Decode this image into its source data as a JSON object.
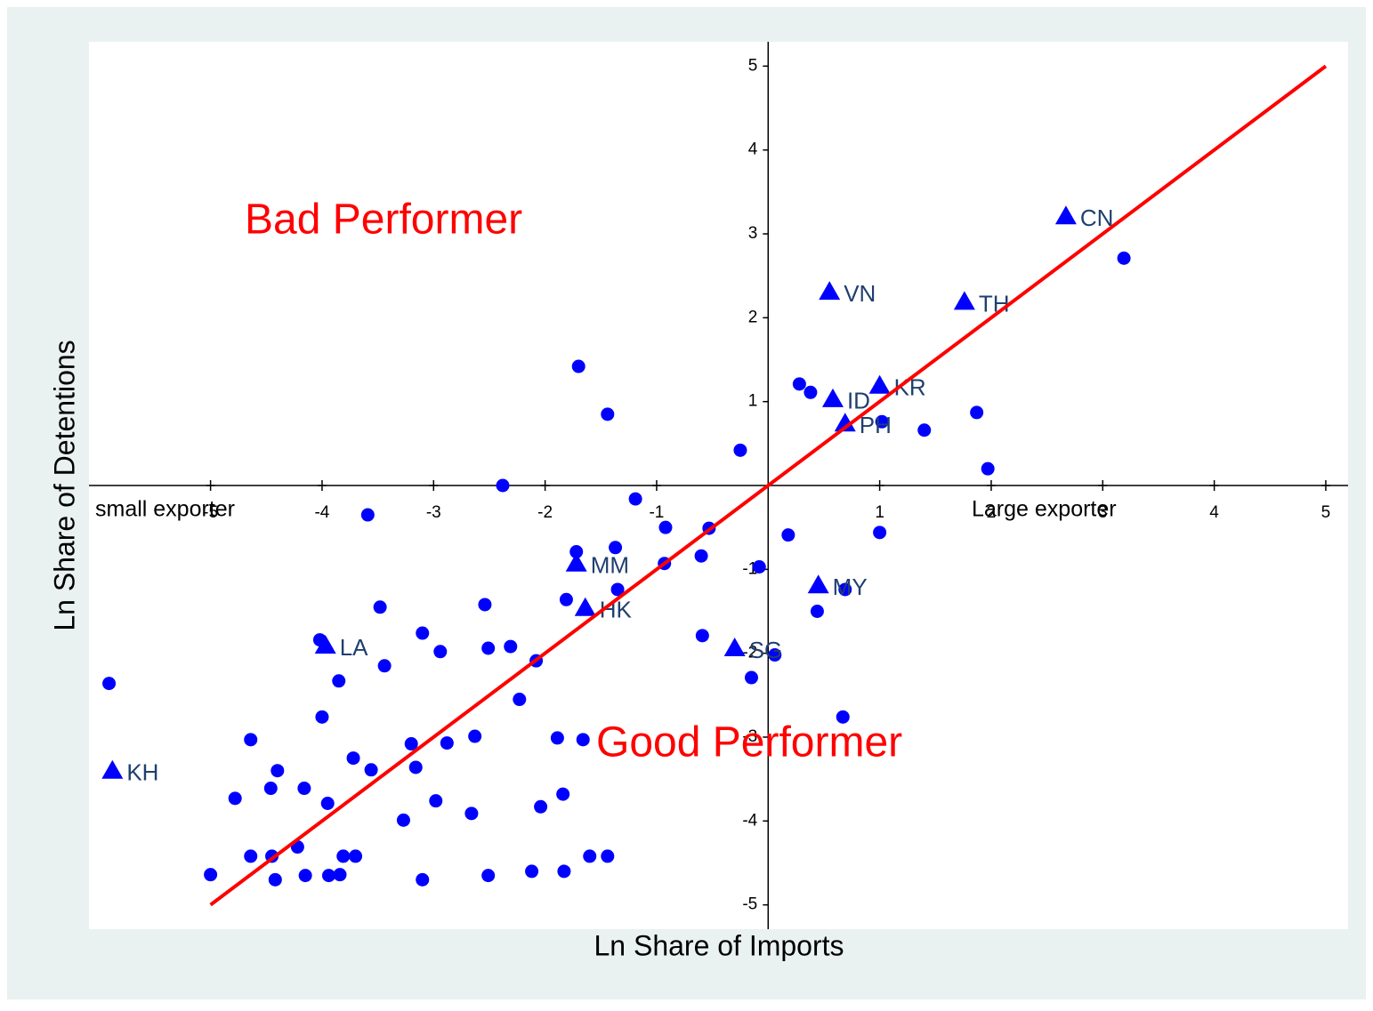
{
  "chart_data": {
    "type": "scatter",
    "xlabel": "Ln Share of Imports",
    "ylabel": "Ln Share of Detentions",
    "xlim": [
      -6.09,
      5.2
    ],
    "ylim": [
      -5.29,
      5.29
    ],
    "xticks": [
      -5,
      -4,
      -3,
      -2,
      -1,
      1,
      2,
      3,
      4,
      5
    ],
    "yticks": [
      -5,
      -4,
      -3,
      -2,
      -1,
      1,
      2,
      3,
      4,
      5
    ],
    "annotations": [
      "Bad Performer",
      "Good Performer",
      "small exporter",
      "Large exporter"
    ],
    "series": [
      {
        "marker": "circle",
        "color": "#0000ff",
        "x": [
          3.19,
          -1.7,
          -1.44,
          0.28,
          0.38,
          1.02,
          1.4,
          1.87,
          1.97,
          -0.25,
          -2.38,
          -1.19,
          -3.59,
          -0.92,
          -0.53,
          0.18,
          1.0,
          -1.72,
          -1.37,
          -0.93,
          -0.6,
          -0.08,
          -1.35,
          0.69,
          -1.81,
          0.44,
          -2.54,
          -3.48,
          -3.1,
          -0.59,
          -4.02,
          -2.51,
          -2.31,
          -2.94,
          0.06,
          -2.08,
          -3.44,
          -0.15,
          -3.85,
          -5.91,
          -2.23,
          -4.0,
          0.67,
          -4.64,
          -2.63,
          -1.89,
          -1.66,
          -3.2,
          -2.88,
          -3.72,
          -4.4,
          -3.16,
          -3.56,
          -4.46,
          -4.16,
          -1.84,
          -4.78,
          -2.98,
          -3.95,
          -2.04,
          -2.66,
          -3.27,
          -4.22,
          -4.64,
          -4.45,
          -3.81,
          -3.7,
          -1.6,
          -1.44,
          -5.0,
          -4.42,
          -4.15,
          -3.94,
          -3.84,
          -3.1,
          -2.51,
          -2.12,
          -1.83
        ],
        "y": [
          2.71,
          1.42,
          0.85,
          1.21,
          1.11,
          0.76,
          0.66,
          0.87,
          0.2,
          0.42,
          0.0,
          -0.16,
          -0.35,
          -0.5,
          -0.51,
          -0.59,
          -0.56,
          -0.79,
          -0.74,
          -0.93,
          -0.84,
          -0.97,
          -1.24,
          -1.24,
          -1.36,
          -1.5,
          -1.42,
          -1.45,
          -1.76,
          -1.79,
          -1.84,
          -1.94,
          -1.92,
          -1.98,
          -2.02,
          -2.09,
          -2.15,
          -2.29,
          -2.33,
          -2.36,
          -2.55,
          -2.76,
          -2.76,
          -3.03,
          -2.99,
          -3.01,
          -3.03,
          -3.08,
          -3.07,
          -3.25,
          -3.4,
          -3.36,
          -3.39,
          -3.61,
          -3.61,
          -3.68,
          -3.73,
          -3.76,
          -3.79,
          -3.83,
          -3.91,
          -3.99,
          -4.31,
          -4.42,
          -4.42,
          -4.42,
          -4.42,
          -4.42,
          -4.42,
          -4.64,
          -4.7,
          -4.65,
          -4.65,
          -4.64,
          -4.7,
          -4.65,
          -4.6,
          -4.6
        ]
      },
      {
        "marker": "triangle",
        "color": "#0000ff",
        "labels": [
          "CN",
          "VN",
          "TH",
          "KR",
          "ID",
          "PH",
          "MM",
          "MY",
          "HK",
          "SG",
          "LA",
          "KH"
        ],
        "x": [
          2.67,
          0.55,
          1.76,
          1.0,
          0.58,
          0.69,
          -1.72,
          0.45,
          -1.64,
          -0.3,
          -3.97,
          -5.88
        ],
        "y": [
          3.21,
          2.31,
          2.19,
          1.19,
          1.03,
          0.74,
          -0.93,
          -1.19,
          -1.46,
          -1.94,
          -1.91,
          -3.4
        ]
      }
    ],
    "lines": [
      {
        "color": "#ff0000",
        "x": [
          -5,
          5
        ],
        "y": [
          -5,
          5
        ]
      }
    ]
  }
}
